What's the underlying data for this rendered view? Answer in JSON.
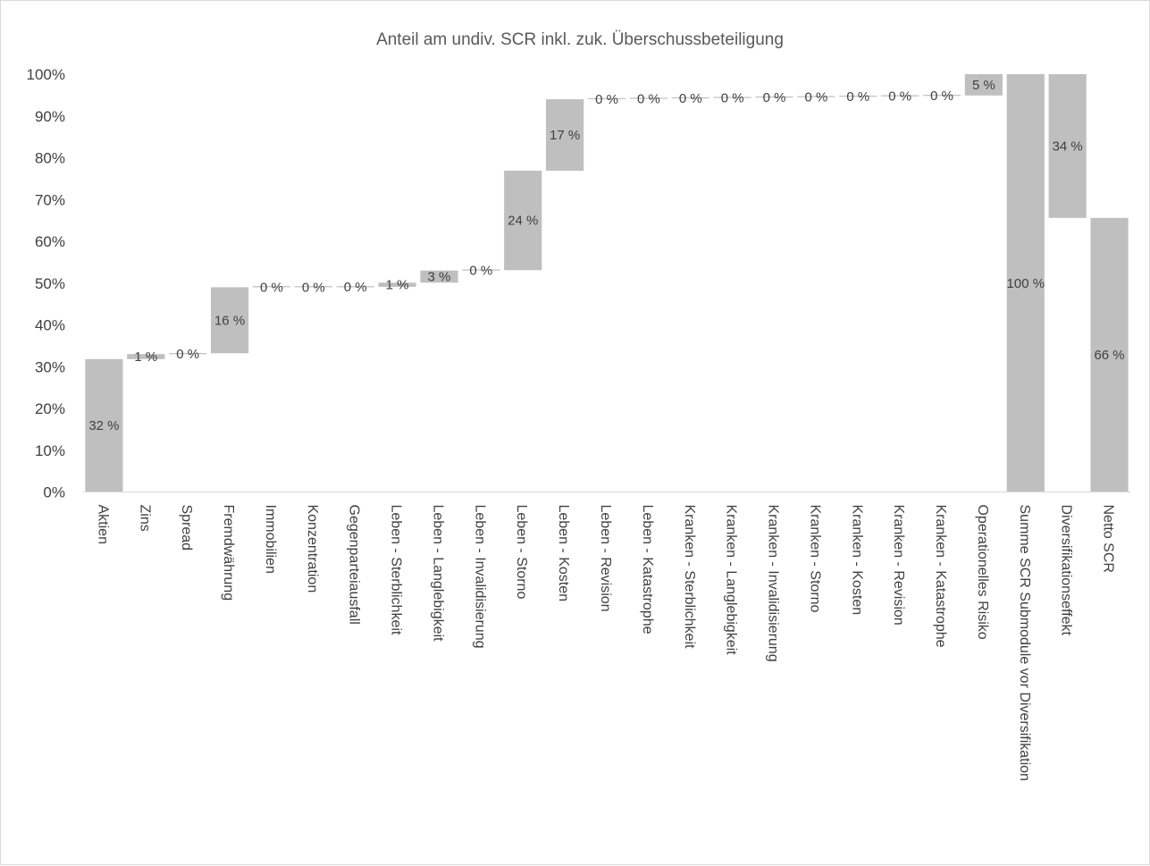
{
  "chart_data": {
    "type": "bar",
    "title": "Anteil am undiv. SCR inkl. zuk. Überschussbeteiligung",
    "xlabel": "",
    "ylabel": "",
    "ylim": [
      0,
      100
    ],
    "yticks": [
      "0%",
      "10%",
      "20%",
      "30%",
      "40%",
      "50%",
      "60%",
      "70%",
      "80%",
      "90%",
      "100%"
    ],
    "grid": false,
    "legend": "none",
    "bar_color": "#bfbfbf",
    "categories": [
      "Aktien",
      "Zins",
      "Spread",
      "Fremdwährung",
      "Immobilien",
      "Konzentration",
      "Gegenparteiausfall",
      "Leben - Sterblichkeit",
      "Leben - Langlebigkeit",
      "Leben - Invalidisierung",
      "Leben - Storno",
      "Leben - Kosten",
      "Leben - Revision",
      "Leben - Katastrophe",
      "Kranken - Sterblichkeit",
      "Kranken - Langlebigkeit",
      "Kranken - Invalidisierung",
      "Kranken - Storno",
      "Kranken - Kosten",
      "Kranken - Revision",
      "Kranken - Katastrophe",
      "Operationelles Risiko",
      "Summe SCR Submodule vor Diversifikation",
      "Diversifikationseffekt",
      "Netto SCR"
    ],
    "bars": [
      {
        "base": 0,
        "top": 31.8,
        "label": "32 %"
      },
      {
        "base": 31.8,
        "top": 33.0,
        "label": "1 %"
      },
      {
        "base": 33.0,
        "top": 33.2,
        "label": "0 %"
      },
      {
        "base": 33.2,
        "top": 49.0,
        "label": "16 %"
      },
      {
        "base": 49.0,
        "top": 49.0,
        "label": "0 %"
      },
      {
        "base": 49.0,
        "top": 49.0,
        "label": "0 %"
      },
      {
        "base": 49.0,
        "top": 49.1,
        "label": "0 %"
      },
      {
        "base": 49.1,
        "top": 50.1,
        "label": "1 %"
      },
      {
        "base": 50.1,
        "top": 53.0,
        "label": "3 %"
      },
      {
        "base": 53.0,
        "top": 53.1,
        "label": "0 %"
      },
      {
        "base": 53.1,
        "top": 76.9,
        "label": "24 %"
      },
      {
        "base": 76.9,
        "top": 94.0,
        "label": "17 %"
      },
      {
        "base": 94.0,
        "top": 94.1,
        "label": "0 %"
      },
      {
        "base": 94.1,
        "top": 94.2,
        "label": "0 %"
      },
      {
        "base": 94.2,
        "top": 94.3,
        "label": "0 %"
      },
      {
        "base": 94.3,
        "top": 94.4,
        "label": "0 %"
      },
      {
        "base": 94.4,
        "top": 94.5,
        "label": "0 %"
      },
      {
        "base": 94.5,
        "top": 94.6,
        "label": "0 %"
      },
      {
        "base": 94.6,
        "top": 94.7,
        "label": "0 %"
      },
      {
        "base": 94.7,
        "top": 94.8,
        "label": "0 %"
      },
      {
        "base": 94.8,
        "top": 94.9,
        "label": "0 %"
      },
      {
        "base": 94.9,
        "top": 100,
        "label": "5 %"
      },
      {
        "base": 0,
        "top": 100,
        "label": "100 %"
      },
      {
        "base": 65.6,
        "top": 100,
        "label": "34 %"
      },
      {
        "base": 0,
        "top": 65.6,
        "label": "66 %"
      }
    ]
  }
}
